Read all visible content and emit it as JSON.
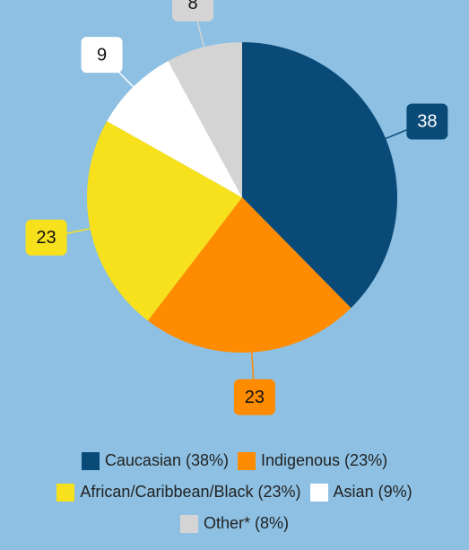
{
  "chart_data": {
    "type": "pie",
    "categories": [
      "Caucasian (38%)",
      "Indigenous (23%)",
      "African/Caribbean/Black (23%)",
      "Asian (9%)",
      "Other* (8%)"
    ],
    "values": [
      38,
      23,
      23,
      9,
      8
    ],
    "colors": [
      "#0a4a78",
      "#ff8c00",
      "#f7e11c",
      "#ffffff",
      "#d4d4d4"
    ]
  }
}
